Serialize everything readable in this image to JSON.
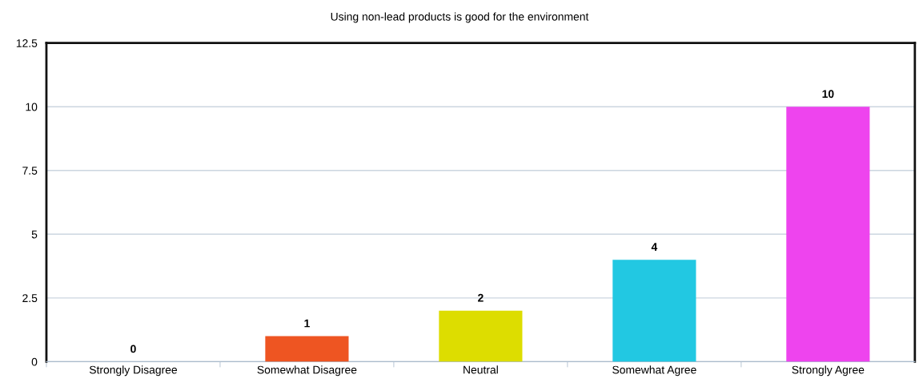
{
  "chart_data": {
    "type": "bar",
    "title": "Using non-lead products is good for the environment",
    "categories": [
      "Strongly Disagree",
      "Somewhat Disagree",
      "Neutral",
      "Somewhat Agree",
      "Strongly Agree"
    ],
    "values": [
      0,
      1,
      2,
      4,
      10
    ],
    "colors": [
      "#4f81bd",
      "#ee5522",
      "#dddd00",
      "#22c8e2",
      "#ee44ee"
    ],
    "ylim": [
      0,
      12.5
    ],
    "yticks": [
      0,
      2.5,
      5,
      7.5,
      10,
      12.5
    ],
    "grid": "y",
    "data_labels": true
  }
}
